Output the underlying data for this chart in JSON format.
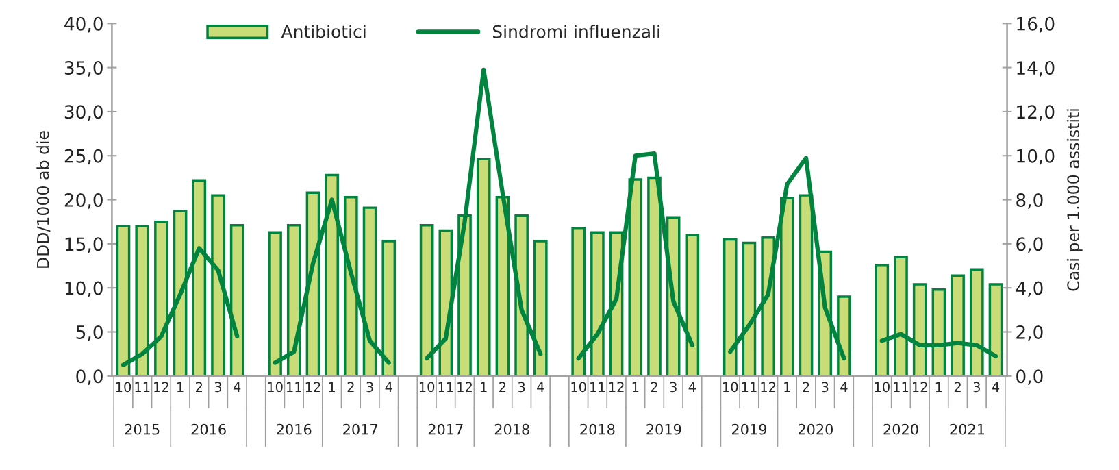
{
  "chart_data": {
    "type": "bar",
    "categories": [
      "10",
      "11",
      "12",
      "1",
      "2",
      "3",
      "4",
      null,
      "10",
      "11",
      "12",
      "1",
      "2",
      "3",
      "4",
      null,
      "10",
      "11",
      "12",
      "1",
      "2",
      "3",
      "4",
      null,
      "10",
      "11",
      "12",
      "1",
      "2",
      "3",
      "4",
      null,
      "10",
      "11",
      "12",
      "1",
      "2",
      "3",
      "4",
      null,
      "10",
      "11",
      "12",
      "1",
      "2",
      "3",
      "4"
    ],
    "series": [
      {
        "name": "Antibiotici",
        "color": "#c8dc78",
        "values": [
          17.0,
          17.0,
          17.5,
          18.7,
          22.2,
          20.5,
          17.1,
          null,
          16.3,
          17.1,
          20.8,
          22.8,
          20.3,
          19.1,
          15.3,
          null,
          17.1,
          16.5,
          18.2,
          24.6,
          20.3,
          18.2,
          15.3,
          null,
          16.8,
          16.3,
          16.3,
          22.3,
          22.5,
          18.0,
          16.0,
          null,
          15.5,
          15.1,
          15.7,
          20.2,
          20.5,
          14.1,
          9.0,
          null,
          12.6,
          13.5,
          10.4,
          9.8,
          11.4,
          12.1,
          10.4
        ]
      },
      {
        "name": "Sindromi influenzali",
        "type": "line",
        "axis": "y2",
        "color": "#00843f",
        "values": [
          0.5,
          1.0,
          1.8,
          3.7,
          5.8,
          4.8,
          1.8,
          null,
          0.6,
          1.1,
          5.1,
          8.0,
          4.7,
          1.6,
          0.6,
          null,
          0.8,
          1.7,
          7.0,
          13.9,
          8.3,
          3.0,
          1.0,
          null,
          0.8,
          1.9,
          3.5,
          10.0,
          10.1,
          3.4,
          1.4,
          null,
          1.1,
          2.3,
          3.7,
          8.7,
          9.9,
          3.1,
          0.8,
          null,
          1.6,
          1.9,
          1.4,
          1.4,
          1.5,
          1.4,
          0.9
        ]
      }
    ],
    "ylabel": "DDD/1000 ab die",
    "y2label": "Casi per 1.000 assistiti",
    "ylim": [
      0,
      40
    ],
    "yticks": [
      {
        "value": 0,
        "label": "0,0"
      },
      {
        "value": 5,
        "label": "5,0"
      },
      {
        "value": 10,
        "label": "10,0"
      },
      {
        "value": 15,
        "label": "15,0"
      },
      {
        "value": 20,
        "label": "20,0"
      },
      {
        "value": 25,
        "label": "25,0"
      },
      {
        "value": 30,
        "label": "30,0"
      },
      {
        "value": 35,
        "label": "35,0"
      },
      {
        "value": 40,
        "label": "40,0"
      }
    ],
    "y2lim": [
      0,
      16
    ],
    "y2ticks": [
      {
        "value": 0,
        "label": "0,0"
      },
      {
        "value": 2,
        "label": "2,0"
      },
      {
        "value": 4,
        "label": "4,0"
      },
      {
        "value": 6,
        "label": "6,0"
      },
      {
        "value": 8,
        "label": "8,0"
      },
      {
        "value": 10,
        "label": "10,0"
      },
      {
        "value": 12,
        "label": "12,0"
      },
      {
        "value": 14,
        "label": "14,0"
      },
      {
        "value": 16,
        "label": "16,0"
      }
    ],
    "annotations": [
      "2015",
      "2016",
      "2016",
      "2017",
      "2017",
      "2018",
      "2018",
      "2019",
      "2019",
      "2020",
      "2020",
      "2021"
    ],
    "legend": "top",
    "grid": false
  }
}
